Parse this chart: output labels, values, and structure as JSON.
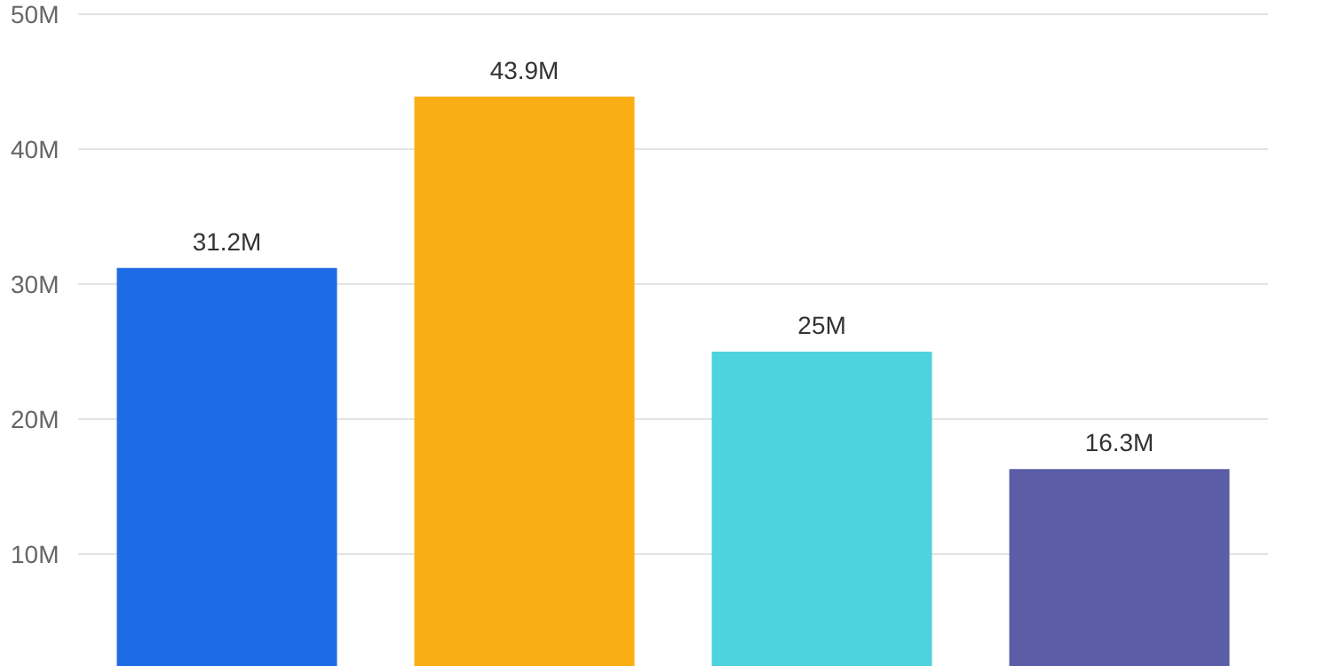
{
  "chart_data": {
    "type": "bar",
    "categories": [
      null,
      null,
      null,
      null
    ],
    "values": [
      31.2,
      43.9,
      25,
      16.3
    ],
    "colors": [
      "#1e6be6",
      "#fbae14",
      "#4cd3dc",
      "#5b5ea6"
    ],
    "value_labels": [
      "31.2M",
      "43.9M",
      "25M",
      "16.3M"
    ],
    "ylim": [
      0,
      50
    ],
    "yticks": [
      {
        "value": 10,
        "label": "10M"
      },
      {
        "value": 20,
        "label": "20M"
      },
      {
        "value": 30,
        "label": "30M"
      },
      {
        "value": 40,
        "label": "40M"
      },
      {
        "value": 50,
        "label": "50M"
      }
    ],
    "grid": "y",
    "tick_labels": "y"
  }
}
